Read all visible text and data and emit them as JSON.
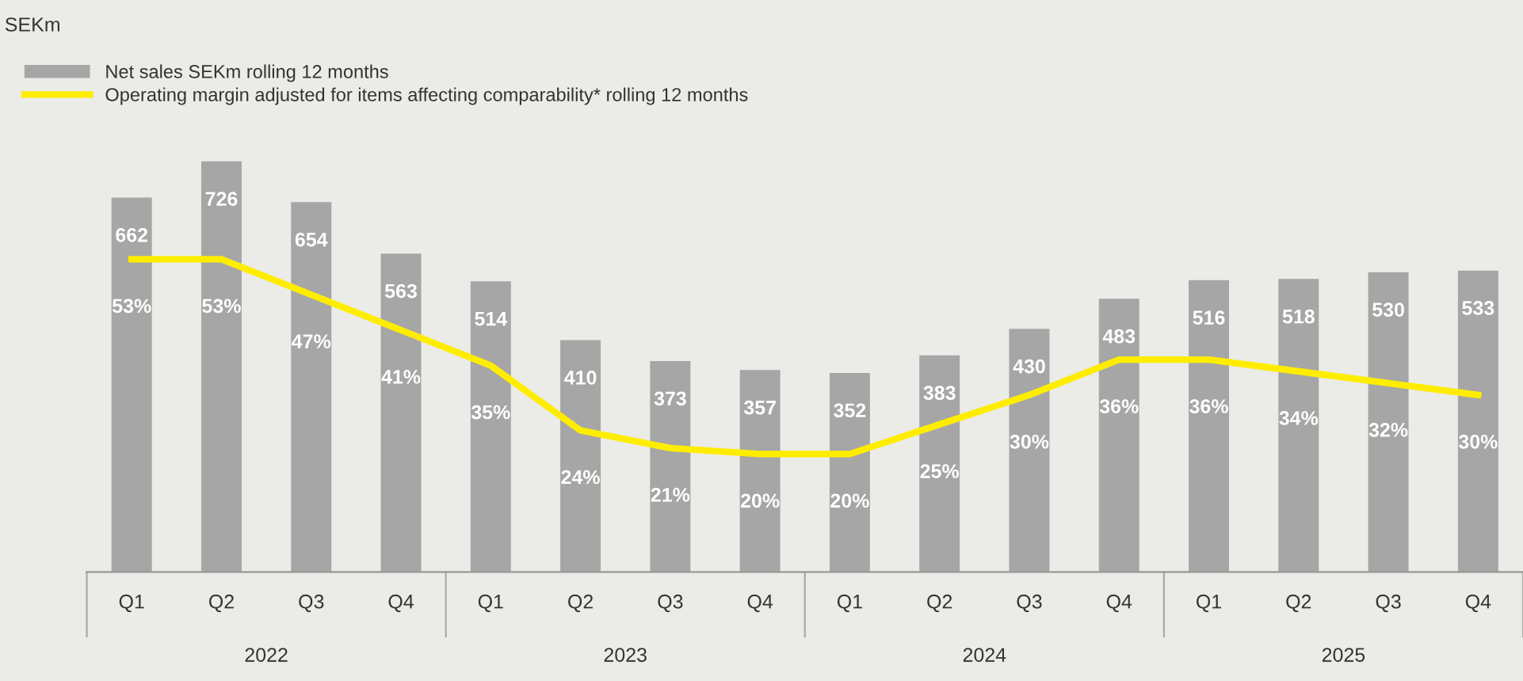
{
  "chart_data": {
    "type": "bar",
    "categories": [
      "Q1",
      "Q2",
      "Q3",
      "Q4",
      "Q1",
      "Q2",
      "Q3",
      "Q4",
      "Q1",
      "Q2",
      "Q3",
      "Q4",
      "Q1",
      "Q2",
      "Q3",
      "Q4"
    ],
    "series": [
      {
        "name": "Net sales SEKm rolling 12 months",
        "color": "#a6a6a6",
        "values": [
          662,
          726,
          654,
          563,
          514,
          410,
          373,
          357,
          352,
          383,
          430,
          483,
          516,
          518,
          530,
          533
        ]
      },
      {
        "name": "Operating margin adjusted for items affecting comparability* rolling 12 months",
        "type": "line",
        "axis": "y2",
        "color": "#ffed00",
        "values": [
          53,
          53,
          47,
          41,
          35,
          24,
          21,
          20,
          20,
          25,
          30,
          36,
          36,
          34,
          32,
          30
        ],
        "value_labels": [
          "53%",
          "53%",
          "47%",
          "41%",
          "35%",
          "24%",
          "21%",
          "20%",
          "20%",
          "25%",
          "30%",
          "36%",
          "36%",
          "34%",
          "32%",
          "30%"
        ]
      }
    ],
    "annotations": [
      "SEKm",
      "2022",
      "2023",
      "2024",
      "2025"
    ],
    "data_labels": true,
    "legend": "top left",
    "grid": false
  }
}
